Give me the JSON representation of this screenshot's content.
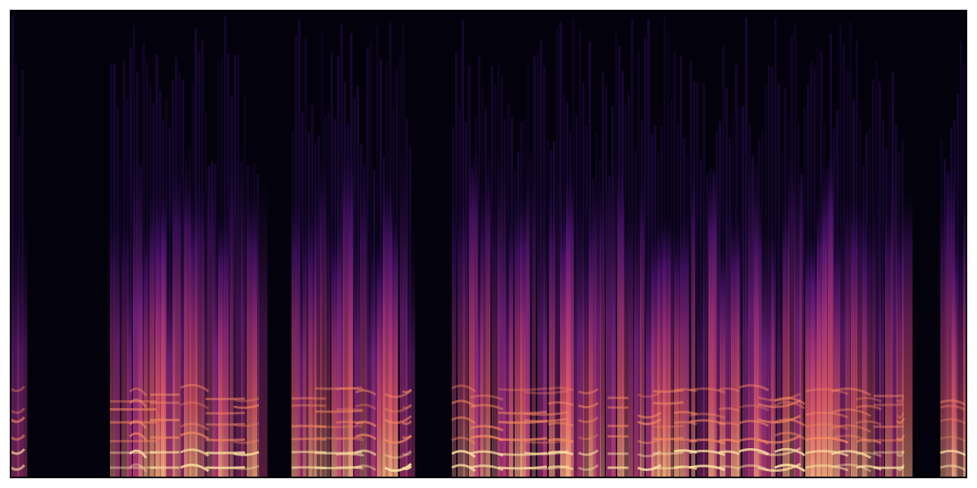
{
  "chart_data": {
    "type": "spectrogram"
  }
}
